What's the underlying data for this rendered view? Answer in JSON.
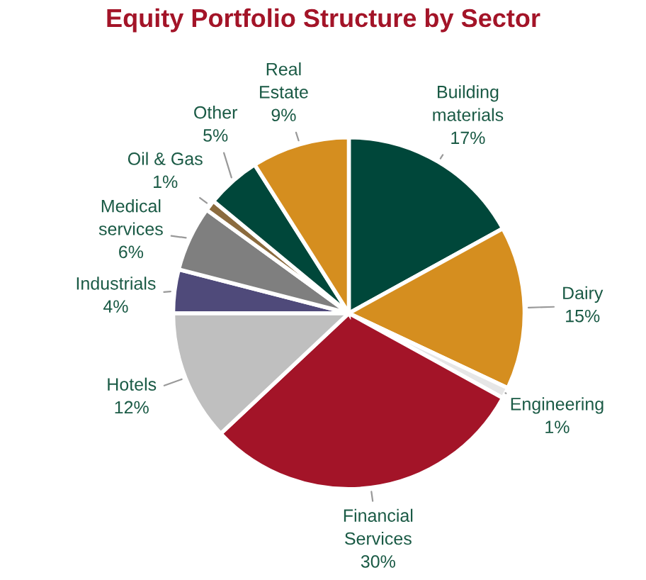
{
  "chart_data": {
    "type": "pie",
    "title": "Equity Portfolio Structure by Sector",
    "categories": [
      "Building materials",
      "Dairy",
      "Engineering",
      "Financial Services",
      "Hotels",
      "Industrials",
      "Medical services",
      "Oil & Gas",
      "Other",
      "Real Estate"
    ],
    "values": [
      17,
      15,
      1,
      30,
      12,
      4,
      6,
      1,
      5,
      9
    ],
    "value_labels": [
      "17%",
      "15%",
      "1%",
      "30%",
      "12%",
      "4%",
      "6%",
      "1%",
      "5%",
      "9%"
    ],
    "colors": [
      "#00473a",
      "#d58e1f",
      "#e6e6e6",
      "#a31428",
      "#bfbfbf",
      "#4f4a7a",
      "#7f7f7f",
      "#8b6b3e",
      "#00473a",
      "#d58e1f"
    ],
    "legend": false
  }
}
